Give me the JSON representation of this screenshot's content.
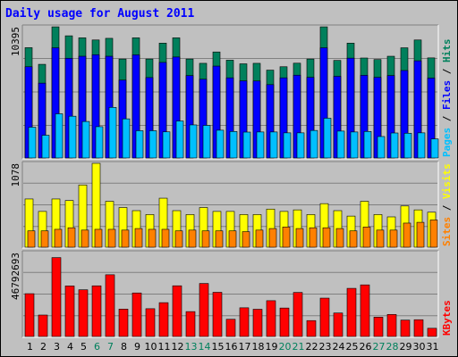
{
  "colors": {
    "hits": "#00805c",
    "files": "#0000ff",
    "pages": "#00c0ff",
    "sites": "#ff8000",
    "visits": "#ffff00",
    "kbytes": "#ff0000",
    "weekend": "#00805c",
    "weekday": "#000000"
  },
  "chart_data": {
    "type": "bar",
    "title": "Daily usage for August 2011",
    "categories": [
      "1",
      "2",
      "3",
      "4",
      "5",
      "6",
      "7",
      "8",
      "9",
      "10",
      "11",
      "12",
      "13",
      "14",
      "15",
      "16",
      "17",
      "18",
      "19",
      "20",
      "21",
      "22",
      "23",
      "24",
      "25",
      "26",
      "27",
      "28",
      "29",
      "30",
      "31"
    ],
    "weekend_days": [
      "6",
      "7",
      "13",
      "14",
      "20",
      "21",
      "27",
      "28"
    ],
    "panels": [
      {
        "axis_label": "10395",
        "legend": [
          "Pages",
          "Files",
          "Hits"
        ],
        "ylim": [
          0,
          10395
        ],
        "series": [
          {
            "name": "Hits",
            "values": [
              8740,
              7420,
              10390,
              9680,
              9520,
              9350,
              9480,
              7840,
              9520,
              7840,
              9100,
              9520,
              7840,
              7500,
              8400,
              7750,
              7460,
              7500,
              6960,
              7230,
              7510,
              7840,
              10390,
              7730,
              9100,
              7920,
              7800,
              8060,
              8730,
              9350,
              7930
            ]
          },
          {
            "name": "Files",
            "values": [
              7230,
              5930,
              8730,
              7900,
              8060,
              8180,
              8060,
              6170,
              8170,
              6370,
              7570,
              8000,
              6530,
              6240,
              7280,
              6350,
              6110,
              6100,
              5810,
              6350,
              6560,
              6390,
              8730,
              6470,
              7910,
              6550,
              6390,
              6530,
              6930,
              7700,
              6330
            ]
          },
          {
            "name": "Pages",
            "values": [
              2440,
              1800,
              3500,
              3310,
              2890,
              2480,
              4010,
              3100,
              2160,
              2160,
              2070,
              2930,
              2620,
              2580,
              2200,
              2100,
              2050,
              2060,
              2060,
              1990,
              1990,
              2180,
              3150,
              2130,
              2060,
              2100,
              1700,
              1980,
              1960,
              1990,
              1510
            ]
          }
        ]
      },
      {
        "axis_label": "1078",
        "legend": [
          "Sites",
          "Visits"
        ],
        "ylim": [
          0,
          1078
        ],
        "series": [
          {
            "name": "Visits",
            "values": [
              620,
              460,
              620,
              600,
              800,
              1078,
              590,
              510,
              470,
              420,
              630,
              470,
              420,
              510,
              460,
              460,
              420,
              420,
              490,
              460,
              480,
              420,
              560,
              470,
              400,
              590,
              420,
              390,
              530,
              480,
              450
            ]
          },
          {
            "name": "Sites",
            "values": [
              210,
              210,
              230,
              250,
              220,
              230,
              230,
              220,
              240,
              230,
              230,
              210,
              220,
              210,
              210,
              210,
              200,
              220,
              240,
              260,
              240,
              250,
              250,
              240,
              210,
              260,
              220,
              220,
              310,
              320,
              350
            ]
          }
        ]
      },
      {
        "axis_label": "46792693",
        "legend": [
          "KBytes"
        ],
        "ylim": [
          0,
          46792693
        ],
        "series": [
          {
            "name": "KBytes",
            "values": [
              23870000,
              11950000,
              43990000,
              28170000,
              26040000,
              28250000,
              34420000,
              15270000,
              24270000,
              15490000,
              18860000,
              28270000,
              13870000,
              29560000,
              24640000,
              9590000,
              16000000,
              15180000,
              19960000,
              15860000,
              24560000,
              8850000,
              21390000,
              13090000,
              26840000,
              28780000,
              10770000,
              12270000,
              9130000,
              9350000,
              4570000
            ]
          }
        ]
      }
    ]
  }
}
